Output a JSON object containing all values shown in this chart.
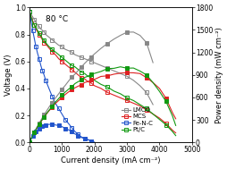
{
  "title_annotation": "80 °C",
  "xlabel": "Current density (mA cm⁻²)",
  "ylabel_left": "Voltage (V)",
  "ylabel_right": "Power density (mW cm⁻²)",
  "xlim": [
    0,
    5000
  ],
  "ylim_left": [
    0.0,
    1.0
  ],
  "ylim_right": [
    0,
    1800
  ],
  "legend_labels": [
    "LMCO",
    "MCS",
    "Fe-N-C",
    "Pt/C"
  ],
  "colors": {
    "LMCO": "#888888",
    "MCS": "#dd2222",
    "Fe-N-C": "#2255cc",
    "Pt/C": "#119911"
  },
  "polarization": {
    "LMCO": {
      "x": [
        0,
        50,
        100,
        150,
        200,
        250,
        300,
        350,
        400,
        450,
        500,
        600,
        700,
        800,
        900,
        1000,
        1100,
        1200,
        1300,
        1400,
        1500,
        1600,
        1700,
        1800,
        1900,
        2000,
        2200,
        2400,
        2600,
        2800,
        3000,
        3200,
        3400,
        3600,
        3800
      ],
      "y": [
        0.97,
        0.95,
        0.93,
        0.91,
        0.89,
        0.87,
        0.86,
        0.84,
        0.83,
        0.82,
        0.8,
        0.78,
        0.76,
        0.74,
        0.72,
        0.71,
        0.69,
        0.68,
        0.67,
        0.65,
        0.64,
        0.63,
        0.62,
        0.61,
        0.6,
        0.59,
        0.57,
        0.55,
        0.53,
        0.51,
        0.49,
        0.46,
        0.42,
        0.37,
        0.28
      ]
    },
    "MCS": {
      "x": [
        0,
        50,
        100,
        150,
        200,
        250,
        300,
        350,
        400,
        450,
        500,
        600,
        700,
        800,
        900,
        1000,
        1100,
        1200,
        1300,
        1400,
        1500,
        1600,
        1700,
        1800,
        1900,
        2000,
        2200,
        2400,
        2600,
        2800,
        3000,
        3200,
        3400,
        3600,
        3800,
        4000,
        4200,
        4400,
        4500
      ],
      "y": [
        0.97,
        0.93,
        0.9,
        0.87,
        0.84,
        0.82,
        0.8,
        0.78,
        0.76,
        0.74,
        0.73,
        0.7,
        0.67,
        0.65,
        0.62,
        0.6,
        0.58,
        0.56,
        0.54,
        0.52,
        0.5,
        0.48,
        0.47,
        0.45,
        0.44,
        0.42,
        0.4,
        0.37,
        0.35,
        0.33,
        0.31,
        0.29,
        0.27,
        0.24,
        0.21,
        0.18,
        0.14,
        0.09,
        0.07
      ]
    },
    "Fe-N-C": {
      "x": [
        0,
        50,
        100,
        150,
        200,
        250,
        300,
        350,
        400,
        450,
        500,
        600,
        700,
        800,
        900,
        1000,
        1100,
        1200,
        1300,
        1400,
        1500,
        1600,
        1700,
        1800,
        1900,
        2000
      ],
      "y": [
        0.97,
        0.9,
        0.83,
        0.77,
        0.71,
        0.66,
        0.62,
        0.57,
        0.53,
        0.5,
        0.46,
        0.4,
        0.34,
        0.29,
        0.25,
        0.21,
        0.17,
        0.14,
        0.11,
        0.08,
        0.06,
        0.04,
        0.03,
        0.02,
        0.01,
        0.0
      ]
    },
    "Pt/C": {
      "x": [
        0,
        50,
        100,
        150,
        200,
        250,
        300,
        350,
        400,
        450,
        500,
        600,
        700,
        800,
        900,
        1000,
        1100,
        1200,
        1300,
        1400,
        1500,
        1600,
        1700,
        1800,
        1900,
        2000,
        2200,
        2400,
        2600,
        2800,
        3000,
        3200,
        3400,
        3600,
        3800,
        4000,
        4200,
        4400,
        4500
      ],
      "y": [
        0.97,
        0.93,
        0.89,
        0.87,
        0.85,
        0.83,
        0.81,
        0.79,
        0.77,
        0.76,
        0.74,
        0.71,
        0.69,
        0.67,
        0.65,
        0.63,
        0.61,
        0.59,
        0.57,
        0.56,
        0.54,
        0.52,
        0.51,
        0.49,
        0.48,
        0.46,
        0.43,
        0.41,
        0.38,
        0.36,
        0.33,
        0.31,
        0.28,
        0.25,
        0.21,
        0.17,
        0.13,
        0.08,
        0.05
      ]
    }
  },
  "power": {
    "LMCO": {
      "x": [
        0,
        50,
        100,
        150,
        200,
        250,
        300,
        350,
        400,
        450,
        500,
        600,
        700,
        800,
        900,
        1000,
        1100,
        1200,
        1300,
        1400,
        1500,
        1600,
        1700,
        1800,
        1900,
        2000,
        2200,
        2400,
        2600,
        2800,
        3000,
        3200,
        3400,
        3600,
        3800
      ],
      "y": [
        0,
        48,
        93,
        137,
        178,
        218,
        258,
        294,
        332,
        369,
        400,
        468,
        532,
        592,
        648,
        710,
        759,
        816,
        871,
        910,
        960,
        1008,
        1054,
        1098,
        1140,
        1180,
        1254,
        1320,
        1378,
        1428,
        1470,
        1472,
        1428,
        1332,
        1064
      ]
    },
    "MCS": {
      "x": [
        0,
        50,
        100,
        150,
        200,
        250,
        300,
        350,
        400,
        450,
        500,
        600,
        700,
        800,
        900,
        1000,
        1100,
        1200,
        1300,
        1400,
        1500,
        1600,
        1700,
        1800,
        1900,
        2000,
        2200,
        2400,
        2600,
        2800,
        3000,
        3200,
        3400,
        3600,
        3800,
        4000,
        4200,
        4400,
        4500
      ],
      "y": [
        0,
        47,
        90,
        131,
        168,
        205,
        240,
        273,
        304,
        333,
        365,
        420,
        469,
        520,
        558,
        600,
        638,
        672,
        702,
        728,
        750,
        768,
        799,
        810,
        836,
        840,
        880,
        888,
        910,
        924,
        930,
        928,
        918,
        864,
        798,
        720,
        588,
        396,
        315
      ]
    },
    "Fe-N-C": {
      "x": [
        0,
        50,
        100,
        150,
        200,
        250,
        300,
        350,
        400,
        450,
        500,
        600,
        700,
        800,
        900,
        1000,
        1100,
        1200,
        1300,
        1400,
        1500,
        1600,
        1700,
        1800,
        1900,
        2000
      ],
      "y": [
        0,
        45,
        83,
        116,
        142,
        165,
        186,
        200,
        212,
        225,
        230,
        240,
        238,
        232,
        225,
        210,
        187,
        168,
        143,
        112,
        90,
        64,
        51,
        36,
        19,
        0
      ]
    },
    "Pt/C": {
      "x": [
        0,
        50,
        100,
        150,
        200,
        250,
        300,
        350,
        400,
        450,
        500,
        600,
        700,
        800,
        900,
        1000,
        1100,
        1200,
        1300,
        1400,
        1500,
        1600,
        1700,
        1800,
        1900,
        2000,
        2200,
        2400,
        2600,
        2800,
        3000,
        3200,
        3400,
        3600,
        3800,
        4000,
        4200,
        4400,
        4500
      ],
      "y": [
        0,
        47,
        89,
        131,
        170,
        208,
        243,
        277,
        308,
        342,
        370,
        426,
        483,
        536,
        585,
        630,
        671,
        708,
        741,
        784,
        810,
        832,
        867,
        882,
        912,
        920,
        946,
        984,
        988,
        1008,
        990,
        992,
        952,
        900,
        798,
        680,
        546,
        352,
        225
      ]
    }
  }
}
